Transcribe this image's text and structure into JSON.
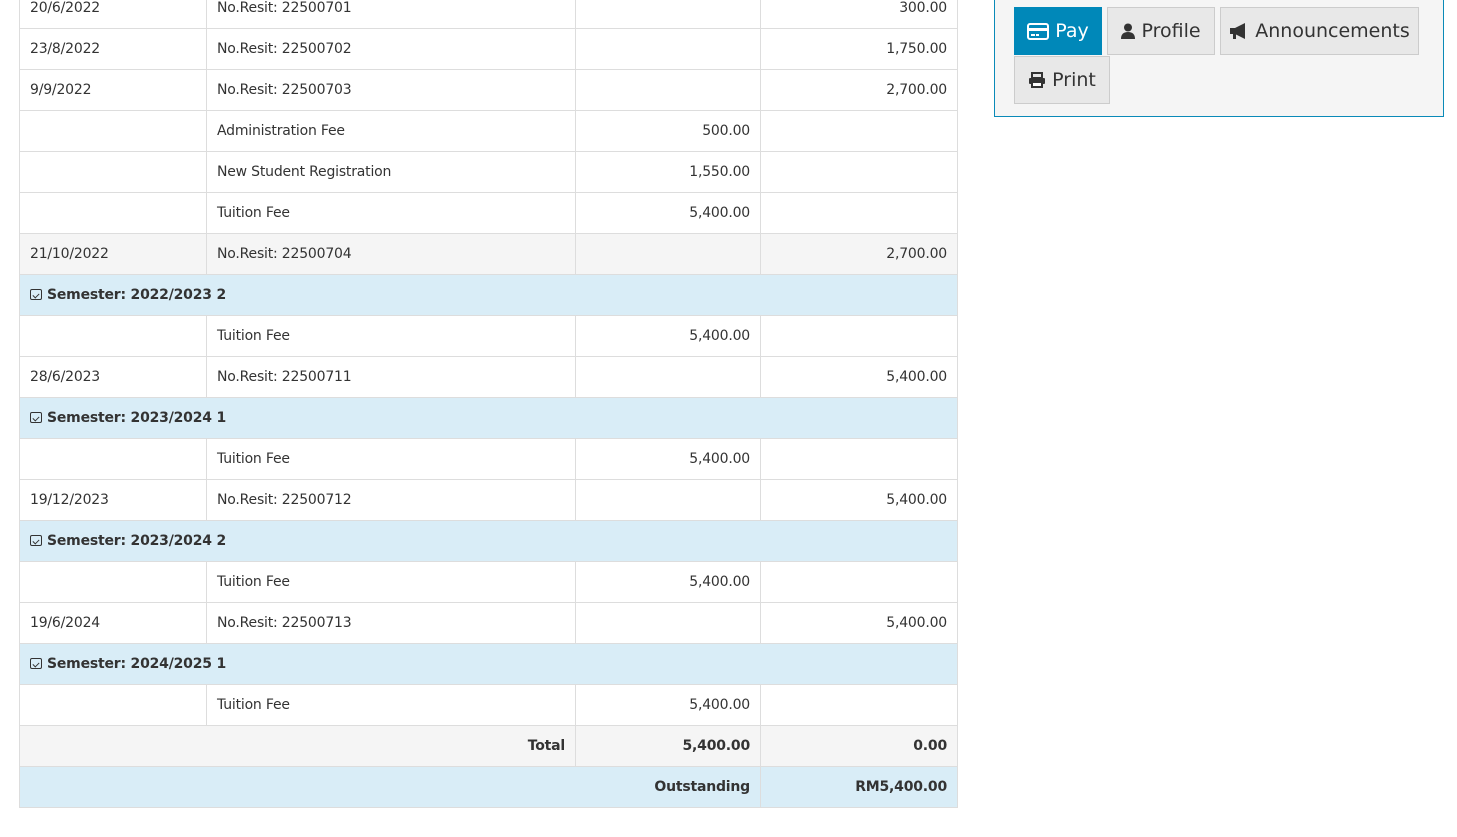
{
  "table": {
    "rows": [
      {
        "type": "normal",
        "date": "20/6/2022",
        "desc": "No.Resit: 22500701",
        "debit": "",
        "credit": "300.00"
      },
      {
        "type": "normal",
        "date": "23/8/2022",
        "desc": "No.Resit: 22500702",
        "debit": "",
        "credit": "1,750.00"
      },
      {
        "type": "normal",
        "date": "9/9/2022",
        "desc": "No.Resit: 22500703",
        "debit": "",
        "credit": "2,700.00"
      },
      {
        "type": "normal",
        "date": "",
        "desc": "Administration Fee",
        "debit": "500.00",
        "credit": ""
      },
      {
        "type": "normal",
        "date": "",
        "desc": "New Student Registration",
        "debit": "1,550.00",
        "credit": ""
      },
      {
        "type": "normal",
        "date": "",
        "desc": "Tuition Fee",
        "debit": "5,400.00",
        "credit": ""
      },
      {
        "type": "grey",
        "date": "21/10/2022",
        "desc": "No.Resit: 22500704",
        "debit": "",
        "credit": "2,700.00"
      },
      {
        "type": "sem",
        "label": "Semester: 2022/2023 2"
      },
      {
        "type": "normal",
        "date": "",
        "desc": "Tuition Fee",
        "debit": "5,400.00",
        "credit": ""
      },
      {
        "type": "normal",
        "date": "28/6/2023",
        "desc": "No.Resit: 22500711",
        "debit": "",
        "credit": "5,400.00"
      },
      {
        "type": "sem",
        "label": "Semester: 2023/2024 1"
      },
      {
        "type": "normal",
        "date": "",
        "desc": "Tuition Fee",
        "debit": "5,400.00",
        "credit": ""
      },
      {
        "type": "normal",
        "date": "19/12/2023",
        "desc": "No.Resit: 22500712",
        "debit": "",
        "credit": "5,400.00"
      },
      {
        "type": "sem",
        "label": "Semester: 2023/2024 2"
      },
      {
        "type": "normal",
        "date": "",
        "desc": "Tuition Fee",
        "debit": "5,400.00",
        "credit": ""
      },
      {
        "type": "normal",
        "date": "19/6/2024",
        "desc": "No.Resit: 22500713",
        "debit": "",
        "credit": "5,400.00"
      },
      {
        "type": "sem",
        "label": "Semester: 2024/2025 1"
      },
      {
        "type": "normal",
        "date": "",
        "desc": "Tuition Fee",
        "debit": "5,400.00",
        "credit": ""
      }
    ],
    "total": {
      "label": "Total",
      "debit": "5,400.00",
      "credit": "0.00"
    },
    "outstanding": {
      "label": "Outstanding",
      "value": "RM5,400.00"
    }
  },
  "actions": {
    "pay": "Pay",
    "profile": "Profile",
    "announcements": "Announcements",
    "print": "Print",
    "accent": "#0088b9"
  }
}
